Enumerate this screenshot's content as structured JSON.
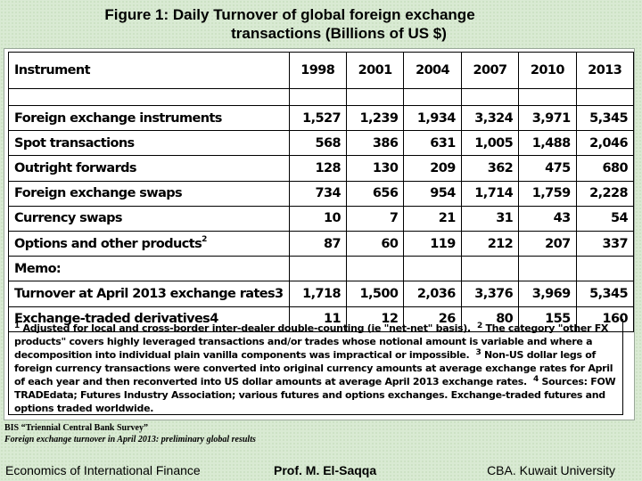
{
  "title": {
    "line1": "Figure 1: Daily Turnover of global foreign exchange",
    "line2": "transactions (Billions of US $)"
  },
  "table": {
    "header": {
      "instrument": "Instrument",
      "years": [
        "1998",
        "2001",
        "2004",
        "2007",
        "2010",
        "2013"
      ]
    },
    "rows": [
      {
        "label": "Foreign exchange instruments",
        "sup": "",
        "values": [
          "1,527",
          "1,239",
          "1,934",
          "3,324",
          "3,971",
          "5,345"
        ]
      },
      {
        "label": "Spot transactions",
        "sup": "",
        "values": [
          "568",
          "386",
          "631",
          "1,005",
          "1,488",
          "2,046"
        ]
      },
      {
        "label": "Outright forwards",
        "sup": "",
        "values": [
          "128",
          "130",
          "209",
          "362",
          "475",
          "680"
        ]
      },
      {
        "label": "Foreign exchange swaps",
        "sup": "",
        "values": [
          "734",
          "656",
          "954",
          "1,714",
          "1,759",
          "2,228"
        ]
      },
      {
        "label": "Currency swaps",
        "sup": "",
        "values": [
          "10",
          "7",
          "21",
          "31",
          "43",
          "54"
        ]
      },
      {
        "label": "Options and other products",
        "sup": "2",
        "values": [
          "87",
          "60",
          "119",
          "212",
          "207",
          "337"
        ]
      },
      {
        "label": "Memo:",
        "sup": "",
        "values": [
          "",
          "",
          "",
          "",
          "",
          ""
        ]
      },
      {
        "label": "Turnover at April 2013 exchange rates3",
        "sup": "",
        "values": [
          "1,718",
          "1,500",
          "2,036",
          "3,376",
          "3,969",
          "5,345"
        ]
      },
      {
        "label": "Exchange-traded derivatives4",
        "sup": "",
        "values": [
          "11",
          "12",
          "26",
          "80",
          "155",
          "160"
        ]
      }
    ]
  },
  "notes": {
    "n1_mark": "1",
    "n1": "Adjusted for local and cross-border inter-dealer double-counting (ie \"net-net\" basis).",
    "n2_mark": "2",
    "n2": "The category \"other FX products\" covers highly leveraged transactions and/or trades whose notional amount is variable and where a decomposition into individual plain vanilla components was impractical or impossible.",
    "n3_mark": "3",
    "n3": "Non-US dollar legs of foreign currency transactions were converted into original currency amounts at average exchange rates for April of each year and then reconverted into US dollar amounts at average April 2013 exchange rates.",
    "n4_mark": "4",
    "n4": "Sources: FOW TRADEdata; Futures Industry Association; various futures and options exchanges. Exchange-traded futures and options traded worldwide."
  },
  "source": {
    "line1": "BIS “Triennial Central Bank Survey”",
    "line2": "Foreign exchange turnover in April 2013: preliminary global results"
  },
  "footer": {
    "left": "Economics of International Finance",
    "center": "Prof. M. El-Saqqa",
    "right": "CBA. Kuwait University"
  }
}
